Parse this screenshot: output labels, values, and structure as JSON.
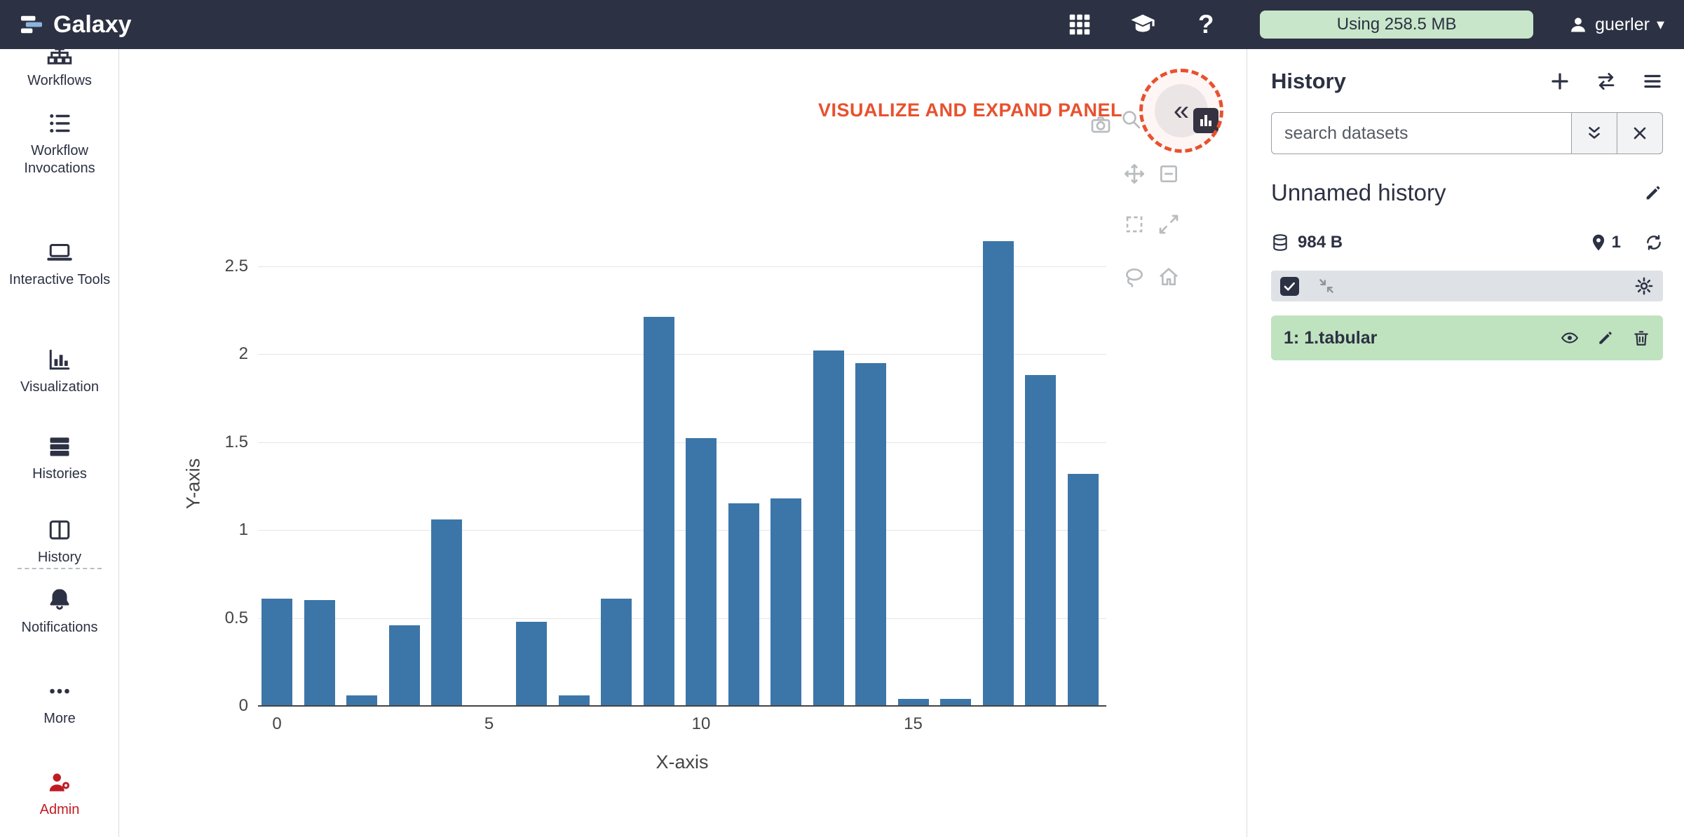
{
  "navbar": {
    "brand": "Galaxy",
    "help_glyph": "?",
    "caret_glyph": "▾",
    "quota_label": "Using 258.5 MB",
    "username": "guerler"
  },
  "sidebar": {
    "items": [
      {
        "label": "Workflows"
      },
      {
        "label": "Workflow Invocations"
      },
      {
        "label": "Interactive Tools"
      },
      {
        "label": "Visualization"
      },
      {
        "label": "Histories"
      },
      {
        "label": "History"
      },
      {
        "label": "Notifications"
      },
      {
        "label": "More"
      },
      {
        "label": "Admin"
      }
    ],
    "admin_color": "#c01c24"
  },
  "main": {
    "annotation_label": "VISUALIZE AND EXPAND PANEL",
    "annotation_color": "#e8512e",
    "collapse_glyph": "«"
  },
  "chart_data": {
    "type": "bar",
    "x": [
      0,
      1,
      2,
      3,
      4,
      5,
      6,
      7,
      8,
      9,
      10,
      11,
      12,
      13,
      14,
      15,
      16,
      17,
      18,
      19
    ],
    "values": [
      0.61,
      0.6,
      0.06,
      0.46,
      1.06,
      0,
      0.48,
      0.06,
      0.61,
      2.21,
      1.52,
      1.15,
      1.18,
      2.02,
      1.95,
      0.04,
      0.04,
      2.64,
      1.88,
      1.32
    ],
    "title": "",
    "xlabel": "X-axis",
    "ylabel": "Y-axis",
    "xticks": [
      0,
      5,
      10,
      15
    ],
    "yticks": [
      0,
      0.5,
      1,
      1.5,
      2,
      2.5
    ],
    "xlim": [
      -0.6,
      19.9
    ],
    "ylim": [
      0,
      2.66
    ],
    "grid": true,
    "legend": false,
    "bar_color": "#3c76a8"
  },
  "history": {
    "title": "History",
    "search_placeholder": "search datasets",
    "name": "Unnamed history",
    "size": "984 B",
    "shown_count": "1",
    "dataset": {
      "hid": "1:",
      "name": "1.tabular",
      "row_color": "#bfe3bf"
    }
  }
}
